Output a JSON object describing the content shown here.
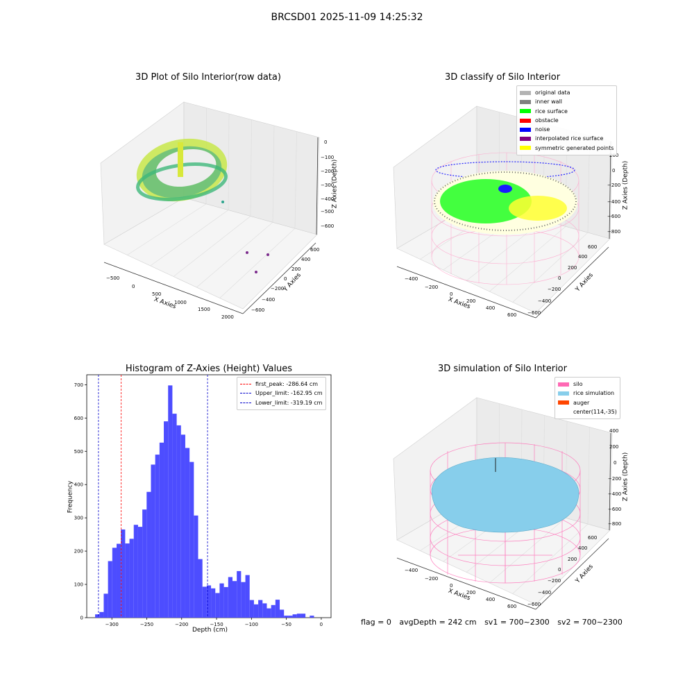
{
  "suptitle": "BRCSD01 2025-11-09 14:25:32",
  "panels": {
    "raw": {
      "title": "3D Plot of Silo Interior(row data)",
      "xlabel": "X Axies",
      "ylabel": "Y Axies",
      "zlabel": "Z Axies (Depth)",
      "xticks": [
        "−500",
        "0",
        "500",
        "1000",
        "1500",
        "2000"
      ],
      "yticks": [
        "600",
        "400",
        "200",
        "0",
        "−200",
        "−400",
        "−600"
      ],
      "zticks": [
        "0",
        "−100",
        "−200",
        "−300",
        "−400",
        "−500",
        "−600"
      ]
    },
    "classify": {
      "title": "3D classify of Silo Interior",
      "xlabel": "X Axies",
      "ylabel": "Y Axies",
      "zlabel": "Z Axies (Depth)",
      "xticks": [
        "−400",
        "−200",
        "0",
        "200",
        "400",
        "600"
      ],
      "yticks": [
        "600",
        "400",
        "200",
        "0",
        "−200",
        "−400",
        "−600"
      ],
      "zticks": [
        "200",
        "0",
        "−200",
        "−400",
        "−600",
        "−800"
      ],
      "legend": [
        {
          "label": "original data",
          "color": "#b3b3b3"
        },
        {
          "label": "inner wall",
          "color": "#808080"
        },
        {
          "label": "rice surface",
          "color": "#00ff00"
        },
        {
          "label": "obstacle",
          "color": "#ff0000"
        },
        {
          "label": "noise",
          "color": "#0000ff"
        },
        {
          "label": "interpolated rice surface",
          "color": "#800080"
        },
        {
          "label": "symmetric generated points",
          "color": "#ffff00"
        }
      ]
    },
    "simulation": {
      "title": "3D simulation of Silo Interior",
      "xlabel": "X Axies",
      "ylabel": "Y Axies",
      "zlabel": "Z Axies (Depth)",
      "xticks": [
        "−400",
        "−200",
        "0",
        "200",
        "400",
        "600"
      ],
      "yticks": [
        "600",
        "400",
        "200",
        "0",
        "−200",
        "−400",
        "−600"
      ],
      "zticks": [
        "400",
        "200",
        "0",
        "−200",
        "−400",
        "−600",
        "−800"
      ],
      "legend": [
        {
          "label": "silo",
          "color": "#ff69b4"
        },
        {
          "label": "rice simulation",
          "color": "#87ceeb"
        },
        {
          "label": "auger",
          "color": "#ff4500"
        },
        {
          "label": "center(114,-35)",
          "color": ""
        }
      ]
    }
  },
  "colors": {
    "histogram_bar": "#4d4dff",
    "silo_wire": "#ff69b4",
    "rice": "#87ceeb"
  },
  "chart_data": [
    {
      "type": "bar",
      "title": "Histogram of Z-Axies (Height) Values",
      "xlabel": "Depth (cm)",
      "ylabel": "Frequency",
      "xlim": [
        -336,
        14
      ],
      "ylim": [
        0,
        730
      ],
      "xticks": [
        -300,
        -250,
        -200,
        -150,
        -100,
        -50,
        0
      ],
      "xtick_labels": [
        "−300",
        "−250",
        "−200",
        "−150",
        "−100",
        "−50",
        "0"
      ],
      "yticks": [
        0,
        100,
        200,
        300,
        400,
        500,
        600,
        700
      ],
      "bin_start": -324,
      "bin_width": 6.15,
      "values": [
        10,
        17,
        72,
        170,
        210,
        222,
        265,
        223,
        237,
        279,
        273,
        325,
        378,
        460,
        490,
        526,
        590,
        698,
        613,
        578,
        550,
        510,
        468,
        307,
        176,
        93,
        97,
        88,
        74,
        103,
        92,
        122,
        110,
        140,
        107,
        128,
        53,
        40,
        53,
        43,
        28,
        38,
        54,
        24,
        6,
        6,
        10,
        12,
        12,
        0,
        6
      ],
      "vlines": [
        {
          "x": -286.64,
          "color": "#ff0000",
          "label": "first_peak: -286.64 cm"
        },
        {
          "x": -162.95,
          "color": "#0000cc",
          "label": "Upper_limit: -162.95 cm"
        },
        {
          "x": -319.19,
          "color": "#0000cc",
          "label": "Lower_limit: -319.19 cm"
        }
      ],
      "legend_position": "top-right"
    }
  ],
  "footer": {
    "flag": "flag = 0",
    "avg": "avgDepth = 242 cm",
    "sv1": "sv1 = 700~2300",
    "sv2": "sv2 = 700~2300"
  }
}
